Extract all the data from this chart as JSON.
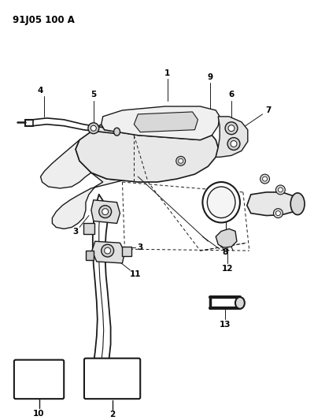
{
  "title": "91J05 100 A",
  "background_color": "#ffffff",
  "line_color": "#1a1a1a",
  "label_color": "#000000",
  "figsize": [
    3.99,
    5.33
  ],
  "dpi": 100
}
